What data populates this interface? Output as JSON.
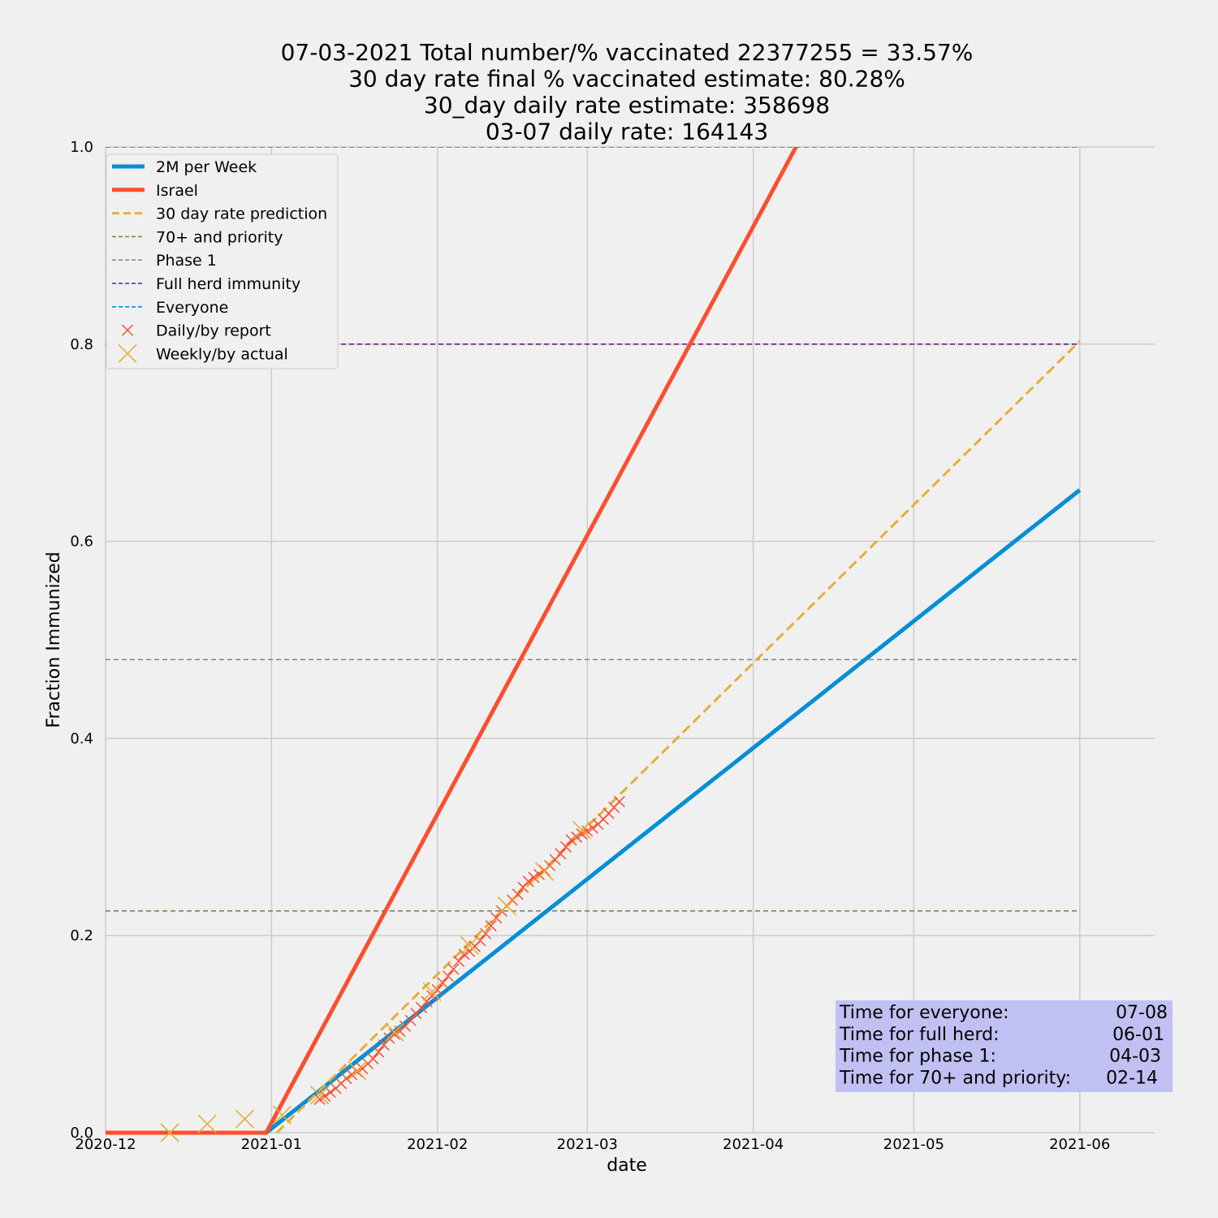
{
  "chart_data": {
    "type": "line",
    "title_lines": [
      "07-03-2021 Total number/% vaccinated 22377255 = 33.57%",
      "30 day rate final % vaccinated estimate: 80.28%",
      "30_day daily rate estimate: 358698",
      "03-07 daily rate: 164143"
    ],
    "xlabel": "date",
    "ylabel": "Fraction Immunized",
    "xlim": [
      "2020-12-01",
      "2021-06-15"
    ],
    "ylim": [
      0,
      1.0
    ],
    "x_ticks": [
      "2020-12-01",
      "2021-01-01",
      "2021-02-01",
      "2021-03-01",
      "2021-04-01",
      "2021-05-01",
      "2021-06-01"
    ],
    "x_tick_labels": [
      "2020-12",
      "2021-01",
      "2021-02",
      "2021-03",
      "2021-04",
      "2021-05",
      "2021-06"
    ],
    "y_ticks": [
      0.0,
      0.2,
      0.4,
      0.6,
      0.8,
      1.0
    ],
    "y_tick_labels": [
      "0.0",
      "0.2",
      "0.4",
      "0.6",
      "0.8",
      "1.0"
    ],
    "grid": true,
    "legend_position": "top-left",
    "series": [
      {
        "name": "2M per Week",
        "kind": "line",
        "color": "#008fd5",
        "style": "solid",
        "width": 5,
        "points": [
          [
            "2020-12-01",
            0.0
          ],
          [
            "2020-12-31",
            0.0
          ],
          [
            "2021-06-01",
            0.652
          ]
        ]
      },
      {
        "name": "Israel",
        "kind": "line",
        "color": "#fc4f30",
        "style": "solid",
        "width": 5,
        "points": [
          [
            "2020-12-01",
            0.0
          ],
          [
            "2020-12-31",
            0.0
          ],
          [
            "2021-04-09",
            1.0
          ]
        ]
      },
      {
        "name": "30 day rate prediction",
        "kind": "line",
        "color": "#e5ae38",
        "style": "dashed",
        "width": 3,
        "points": [
          [
            "2021-01-02",
            0.0
          ],
          [
            "2021-06-01",
            0.803
          ]
        ]
      },
      {
        "name": "70+ and priority",
        "kind": "hline",
        "color": "#6d904f",
        "style": "dashed",
        "width": 1.6,
        "y": 0.225,
        "x_range": [
          "2020-12-01",
          "2021-06-01"
        ]
      },
      {
        "name": "Phase 1",
        "kind": "hline",
        "color": "#8b8b8b",
        "style": "dashed",
        "width": 1.6,
        "y": 0.48,
        "x_range": [
          "2020-12-01",
          "2021-06-01"
        ]
      },
      {
        "name": "Full herd immunity",
        "kind": "hline",
        "color": "#810f7c",
        "style": "dashed",
        "width": 1.6,
        "y": 0.8,
        "x_range": [
          "2020-12-01",
          "2021-06-01"
        ]
      },
      {
        "name": "Everyone",
        "kind": "hline",
        "color": "#008fd5",
        "style": "dashed",
        "width": 1.6,
        "y": 1.0,
        "x_range": [
          "2020-12-01",
          "2021-06-01"
        ]
      },
      {
        "name": "Daily/by report",
        "kind": "scatter",
        "marker": "x-small",
        "color": "#fc4f30",
        "x": [
          "2021-01-10",
          "2021-01-11",
          "2021-01-12",
          "2021-01-13",
          "2021-01-14",
          "2021-01-15",
          "2021-01-16",
          "2021-01-17",
          "2021-01-18",
          "2021-01-19",
          "2021-01-20",
          "2021-01-21",
          "2021-01-22",
          "2021-01-23",
          "2021-01-24",
          "2021-01-25",
          "2021-01-26",
          "2021-01-27",
          "2021-01-28",
          "2021-01-29",
          "2021-01-30",
          "2021-01-31",
          "2021-02-01",
          "2021-02-02",
          "2021-02-03",
          "2021-02-04",
          "2021-02-05",
          "2021-02-06",
          "2021-02-07",
          "2021-02-08",
          "2021-02-09",
          "2021-02-10",
          "2021-02-11",
          "2021-02-12",
          "2021-02-13",
          "2021-02-14",
          "2021-02-15",
          "2021-02-16",
          "2021-02-17",
          "2021-02-18",
          "2021-02-19",
          "2021-02-20",
          "2021-02-21",
          "2021-02-22",
          "2021-02-23",
          "2021-02-24",
          "2021-02-25",
          "2021-02-26",
          "2021-02-27",
          "2021-02-28",
          "2021-03-01",
          "2021-03-02",
          "2021-03-03",
          "2021-03-04",
          "2021-03-05",
          "2021-03-06",
          "2021-03-07"
        ],
        "y": [
          0.034,
          0.037,
          0.041,
          0.045,
          0.05,
          0.055,
          0.059,
          0.062,
          0.065,
          0.07,
          0.075,
          0.082,
          0.089,
          0.096,
          0.1,
          0.103,
          0.108,
          0.114,
          0.121,
          0.127,
          0.133,
          0.139,
          0.145,
          0.152,
          0.159,
          0.166,
          0.174,
          0.181,
          0.184,
          0.189,
          0.195,
          0.202,
          0.21,
          0.218,
          0.225,
          0.23,
          0.236,
          0.242,
          0.249,
          0.255,
          0.259,
          0.262,
          0.266,
          0.271,
          0.277,
          0.283,
          0.29,
          0.297,
          0.3,
          0.303,
          0.306,
          0.309,
          0.313,
          0.318,
          0.324,
          0.33,
          0.336
        ]
      },
      {
        "name": "Weekly/by actual",
        "kind": "scatter",
        "marker": "x-large",
        "color": "#e5ae38",
        "x": [
          "2020-12-13",
          "2020-12-20",
          "2020-12-27",
          "2021-01-03",
          "2021-01-10",
          "2021-01-17",
          "2021-01-24",
          "2021-01-31",
          "2021-02-07",
          "2021-02-14",
          "2021-02-21",
          "2021-02-28"
        ],
        "y": [
          0.0,
          0.009,
          0.014,
          0.018,
          0.038,
          0.063,
          0.102,
          0.143,
          0.19,
          0.23,
          0.265,
          0.307
        ]
      }
    ],
    "info_box": {
      "rows": [
        {
          "label": "Time for everyone:",
          "value": "07-08"
        },
        {
          "label": "Time for full herd:",
          "value": "06-01"
        },
        {
          "label": "Time for phase 1:",
          "value": "04-03"
        },
        {
          "label": "Time for 70+ and priority:",
          "value": "02-14"
        }
      ],
      "background": "#c0c0f2"
    }
  }
}
